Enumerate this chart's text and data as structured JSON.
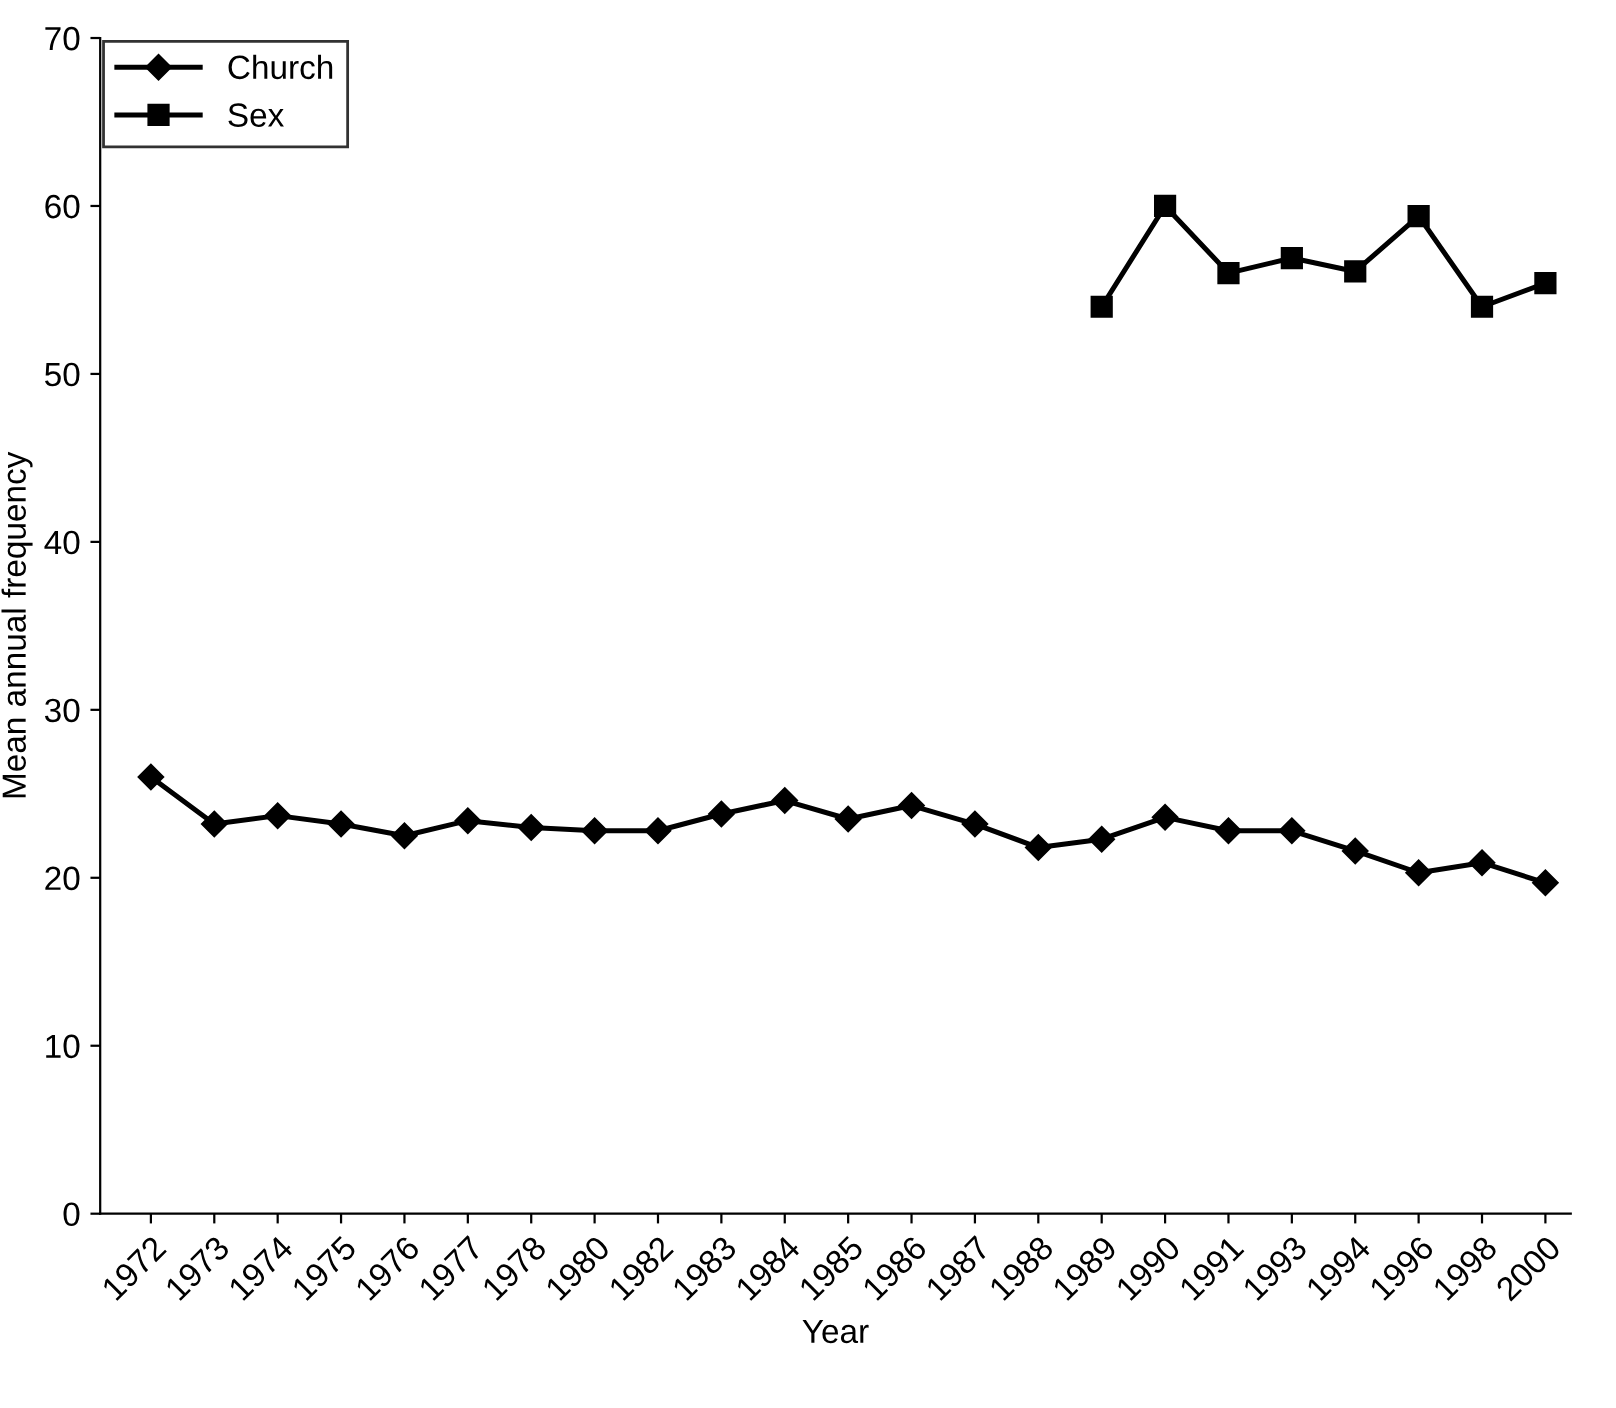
{
  "chart_data": {
    "type": "line",
    "xlabel": "Year",
    "ylabel": "Mean annual frequency",
    "categories": [
      "1972",
      "1973",
      "1974",
      "1975",
      "1976",
      "1977",
      "1978",
      "1980",
      "1982",
      "1983",
      "1984",
      "1985",
      "1986",
      "1987",
      "1988",
      "1989",
      "1990",
      "1991",
      "1993",
      "1994",
      "1996",
      "1998",
      "2000"
    ],
    "series": [
      {
        "name": "Church",
        "color": "#000000",
        "marker": "diamond",
        "values": [
          26.0,
          23.2,
          23.7,
          23.2,
          22.5,
          23.4,
          23.0,
          22.8,
          22.8,
          23.8,
          24.6,
          23.5,
          24.3,
          23.2,
          21.8,
          22.3,
          23.6,
          22.8,
          22.8,
          21.6,
          20.3,
          20.9,
          19.7
        ]
      },
      {
        "name": "Sex",
        "color": "#000000",
        "marker": "square",
        "values": [
          null,
          null,
          null,
          null,
          null,
          null,
          null,
          null,
          null,
          null,
          null,
          null,
          null,
          null,
          null,
          54.0,
          60.0,
          56.0,
          56.9,
          56.1,
          59.4,
          54.0,
          55.4
        ]
      }
    ],
    "ylim": [
      0,
      70
    ],
    "yticks": [
      0,
      10,
      20,
      30,
      40,
      50,
      60,
      70
    ],
    "grid": false,
    "legend": "top left",
    "line_style": "solid"
  }
}
